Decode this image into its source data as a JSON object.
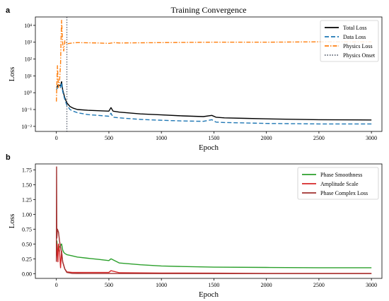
{
  "chart_data": [
    {
      "panel_label": "a",
      "type": "line",
      "title": "Training Convergence",
      "xlabel": "Epoch",
      "ylabel": "Loss",
      "yscale": "log",
      "xlim": [
        -200,
        3100
      ],
      "ylim_log10": [
        -2.3,
        4.5
      ],
      "x_ticks": [
        0,
        500,
        1000,
        1500,
        2000,
        2500,
        3000
      ],
      "y_ticks": [
        {
          "exp": -2,
          "label": "10⁻²"
        },
        {
          "exp": -1,
          "label": "10⁻¹"
        },
        {
          "exp": 0,
          "label": "10⁰"
        },
        {
          "exp": 1,
          "label": "10¹"
        },
        {
          "exp": 2,
          "label": "10²"
        },
        {
          "exp": 3,
          "label": "10³"
        },
        {
          "exp": 4,
          "label": "10⁴"
        }
      ],
      "legend_position": "top-right",
      "vline": {
        "name": "Physics Onset",
        "x": 100,
        "color": "#5a6270",
        "style": "dotted"
      },
      "series": [
        {
          "name": "Total Loss",
          "color": "#000000",
          "style": "solid",
          "x": [
            0,
            20,
            40,
            50,
            60,
            80,
            100,
            130,
            160,
            200,
            300,
            400,
            500,
            520,
            540,
            600,
            800,
            1000,
            1200,
            1400,
            1480,
            1520,
            1600,
            1800,
            2000,
            2500,
            3000
          ],
          "y": [
            2.0,
            3.0,
            2.5,
            4.5,
            1.5,
            0.5,
            0.25,
            0.15,
            0.12,
            0.1,
            0.09,
            0.085,
            0.08,
            0.13,
            0.08,
            0.07,
            0.055,
            0.048,
            0.042,
            0.038,
            0.045,
            0.035,
            0.032,
            0.03,
            0.028,
            0.025,
            0.024
          ]
        },
        {
          "name": "Data Loss",
          "color": "#1f77b4",
          "style": "dashed",
          "x": [
            0,
            20,
            40,
            50,
            60,
            80,
            100,
            130,
            160,
            200,
            300,
            400,
            500,
            520,
            540,
            600,
            800,
            1000,
            1200,
            1400,
            1480,
            1520,
            1600,
            1800,
            2000,
            2500,
            3000
          ],
          "y": [
            1.5,
            2.5,
            2.0,
            4.0,
            1.2,
            0.4,
            0.18,
            0.1,
            0.08,
            0.065,
            0.05,
            0.045,
            0.04,
            0.06,
            0.035,
            0.032,
            0.026,
            0.023,
            0.021,
            0.02,
            0.025,
            0.018,
            0.017,
            0.016,
            0.015,
            0.014,
            0.014
          ]
        },
        {
          "name": "Physics Loss",
          "color": "#ff7f0e",
          "style": "dashdot",
          "x": [
            0,
            10,
            20,
            30,
            40,
            45,
            50,
            60,
            70,
            80,
            100,
            150,
            200,
            400,
            500,
            550,
            600,
            1000,
            1500,
            2000,
            2500,
            3000
          ],
          "y": [
            0.3,
            40,
            2,
            5,
            50,
            2000,
            20000,
            800,
            300,
            1200,
            800,
            900,
            950,
            900,
            850,
            950,
            900,
            950,
            1000,
            1000,
            1050,
            1050
          ]
        }
      ]
    },
    {
      "panel_label": "b",
      "type": "line",
      "xlabel": "Epoch",
      "ylabel": "Loss",
      "xlim": [
        -200,
        3100
      ],
      "ylim": [
        -0.08,
        1.85
      ],
      "x_ticks": [
        0,
        500,
        1000,
        1500,
        2000,
        2500,
        3000
      ],
      "y_ticks": [
        0.0,
        0.25,
        0.5,
        0.75,
        1.0,
        1.25,
        1.5,
        1.75
      ],
      "y_tick_labels": [
        "0.00",
        "0.25",
        "0.50",
        "0.75",
        "1.00",
        "1.25",
        "1.50",
        "1.75"
      ],
      "legend_position": "top-right",
      "series": [
        {
          "name": "Phase Smoothness",
          "color": "#2ca02c",
          "style": "solid",
          "x": [
            0,
            5,
            10,
            20,
            30,
            50,
            60,
            70,
            80,
            100,
            150,
            200,
            300,
            400,
            500,
            520,
            600,
            800,
            1000,
            1200,
            1500,
            2000,
            2500,
            3000
          ],
          "y": [
            0.3,
            0.55,
            0.42,
            0.38,
            0.45,
            0.5,
            0.4,
            0.36,
            0.34,
            0.32,
            0.3,
            0.28,
            0.26,
            0.24,
            0.22,
            0.25,
            0.18,
            0.15,
            0.13,
            0.12,
            0.11,
            0.105,
            0.1,
            0.1
          ]
        },
        {
          "name": "Amplitude Scale",
          "color": "#d62728",
          "style": "solid",
          "x": [
            0,
            5,
            10,
            15,
            20,
            30,
            40,
            50,
            60,
            80,
            100,
            150,
            200,
            300,
            500,
            520,
            600,
            1000,
            1500,
            2000,
            3000
          ],
          "y": [
            0.2,
            0.5,
            0.35,
            0.2,
            0.5,
            0.38,
            0.1,
            0.38,
            0.2,
            0.08,
            0.03,
            0.02,
            0.02,
            0.02,
            0.02,
            0.05,
            0.015,
            0.01,
            0.008,
            0.005,
            0.005
          ]
        },
        {
          "name": "Phase Complex Loss",
          "color": "#a0302f",
          "style": "solid",
          "x": [
            0,
            2,
            5,
            10,
            20,
            30,
            40,
            50,
            60,
            80,
            100,
            150,
            200,
            300,
            500,
            1000,
            2000,
            3000
          ],
          "y": [
            0.2,
            1.8,
            0.6,
            0.75,
            0.7,
            0.55,
            0.45,
            0.35,
            0.2,
            0.08,
            0.02,
            0.005,
            0.003,
            0.002,
            0.002,
            0.0015,
            0.001,
            0.001
          ]
        }
      ]
    }
  ]
}
